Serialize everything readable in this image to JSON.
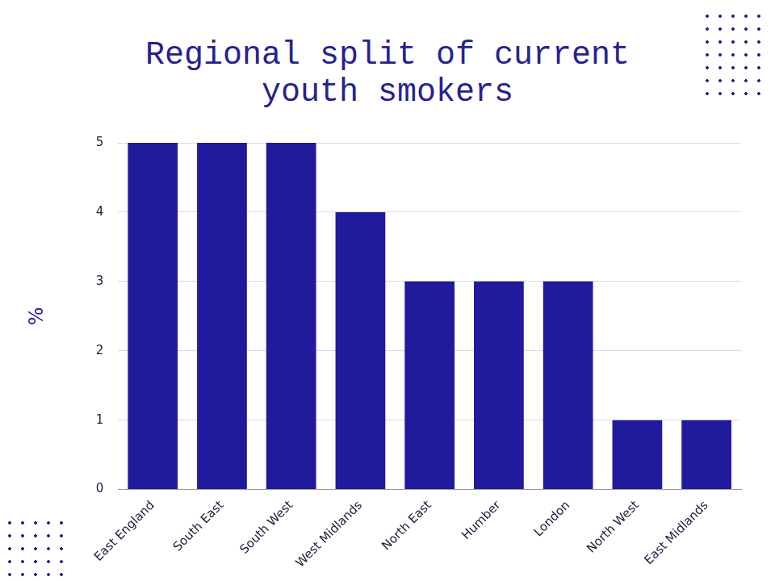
{
  "chart_data": {
    "type": "bar",
    "title": "Regional split of current youth smokers",
    "ylabel": "%",
    "categories": [
      "East England",
      "South East",
      "South West",
      "West Midlands",
      "North East",
      "Humber",
      "London",
      "North West",
      "East Midlands"
    ],
    "values": [
      5,
      5,
      5,
      4,
      3,
      3,
      3,
      1,
      1
    ],
    "color": "#1f1b9c",
    "ylim": [
      0,
      5
    ],
    "yticks": [
      0,
      1,
      2,
      3,
      4,
      5
    ],
    "grid": true
  }
}
